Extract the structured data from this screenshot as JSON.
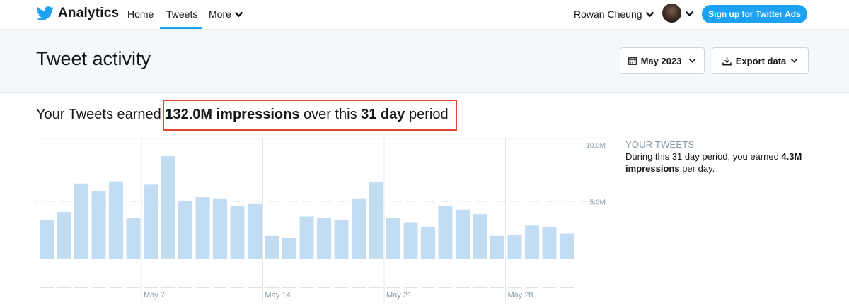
{
  "nav": {
    "brand": "Analytics",
    "home": "Home",
    "tweets": "Tweets",
    "more": "More",
    "user_name": "Rowan Cheung",
    "ads_button": "Sign up for Twitter Ads",
    "icons": [
      "twitter-bird-icon",
      "chevron-down-icon",
      "avatar"
    ]
  },
  "header": {
    "title": "Tweet activity",
    "month_button": "May 2023",
    "export_button": "Export data"
  },
  "summary": {
    "prefix": "Your Tweets earned ",
    "impressions": "132.0M impressions",
    "middle": " over this ",
    "period": "31 day",
    "suffix": " period"
  },
  "sidebar": {
    "title": "YOUR TWEETS",
    "text_prefix": "During this 31 day period, you earned ",
    "value": "4.3M",
    "unit": "impressions",
    "text_suffix": " per day."
  },
  "colors": {
    "accent": "#1da1f2",
    "bar": "#c2ddf3",
    "highlight": "#e0452e"
  },
  "chart_data": {
    "type": "bar",
    "categories": [
      "May 1",
      "May 2",
      "May 3",
      "May 4",
      "May 5",
      "May 6",
      "May 7",
      "May 8",
      "May 9",
      "May 10",
      "May 11",
      "May 12",
      "May 13",
      "May 14",
      "May 15",
      "May 16",
      "May 17",
      "May 18",
      "May 19",
      "May 20",
      "May 21",
      "May 22",
      "May 23",
      "May 24",
      "May 25",
      "May 26",
      "May 27",
      "May 28",
      "May 29",
      "May 30",
      "May 31"
    ],
    "values": [
      3.4,
      4.1,
      6.6,
      5.9,
      6.8,
      3.6,
      6.5,
      9.0,
      5.1,
      5.4,
      5.3,
      4.6,
      4.8,
      2.0,
      1.8,
      3.7,
      3.6,
      3.4,
      5.3,
      6.7,
      3.6,
      3.2,
      2.8,
      4.6,
      4.3,
      3.9,
      2.0,
      2.1,
      2.9,
      2.8,
      2.2
    ],
    "ylim": [
      0,
      10.0
    ],
    "yticks": [
      "10.0M",
      "5.0M"
    ],
    "xticks": [
      "May 7",
      "May 14",
      "May 21",
      "May 28"
    ],
    "grid": true
  }
}
